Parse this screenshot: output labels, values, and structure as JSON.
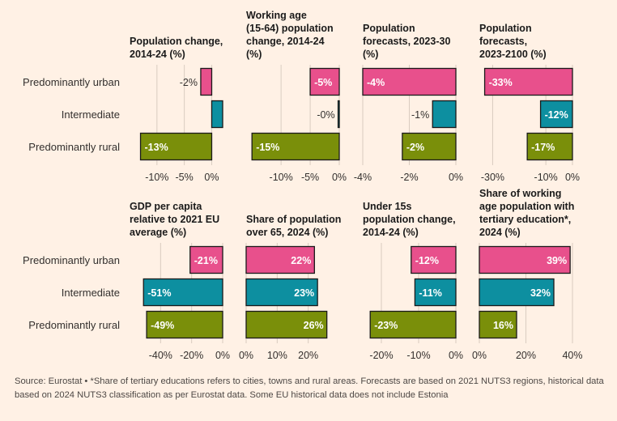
{
  "colors": {
    "urban": "#e8508c",
    "intermediate": "#0d8fa0",
    "rural": "#7a8f0a",
    "background": "#fff1e5",
    "gridline": "#d9ccc0",
    "zeroline": "#33302e"
  },
  "categories": [
    "Predominantly urban",
    "Intermediate",
    "Predominantly rural"
  ],
  "chart_data": [
    {
      "type": "bar",
      "title": "Population change,\n2014-24 (%)",
      "categories": [
        "Predominantly urban",
        "Intermediate",
        "Predominantly rural"
      ],
      "values": [
        -2,
        2,
        -13
      ],
      "labels": [
        "-2%",
        "",
        "-13%"
      ],
      "xlim": [
        -15,
        2
      ],
      "ticks": [
        -10,
        -5,
        0
      ],
      "tick_labels": [
        "-10%",
        "-5%",
        "0%"
      ]
    },
    {
      "type": "bar",
      "title": "Working age\n(15-64) population\nchange, 2014-24\n(%)",
      "categories": [
        "Predominantly urban",
        "Intermediate",
        "Predominantly rural"
      ],
      "values": [
        -5,
        -0.2,
        -15
      ],
      "labels": [
        "-5%",
        "-0%",
        "-15%"
      ],
      "xlim": [
        -16,
        0
      ],
      "ticks": [
        -10,
        -5,
        0
      ],
      "tick_labels": [
        "-10%",
        "-5%",
        "0%"
      ]
    },
    {
      "type": "bar",
      "title": "Population\nforecasts, 2023-30\n(%)",
      "categories": [
        "Predominantly urban",
        "Intermediate",
        "Predominantly rural"
      ],
      "values": [
        -4,
        -1,
        -2.3
      ],
      "labels": [
        "-4%",
        "-1%",
        "-2%"
      ],
      "xlim": [
        -4,
        0
      ],
      "ticks": [
        -4,
        -2,
        0
      ],
      "tick_labels": [
        "-4%",
        "-2%",
        "0%"
      ]
    },
    {
      "type": "bar",
      "title": "Population\nforecasts,\n2023-2100 (%)",
      "categories": [
        "Predominantly urban",
        "Intermediate",
        "Predominantly rural"
      ],
      "values": [
        -33,
        -12,
        -17
      ],
      "labels": [
        "-33%",
        "-12%",
        "-17%"
      ],
      "xlim": [
        -35,
        0
      ],
      "ticks": [
        -30,
        -10,
        0
      ],
      "tick_labels": [
        "-30%",
        "-10%",
        "0%"
      ]
    },
    {
      "type": "bar",
      "title": "GDP per capita\nrelative to 2021 EU\naverage (%)",
      "categories": [
        "Predominantly urban",
        "Intermediate",
        "Predominantly rural"
      ],
      "values": [
        -21,
        -51,
        -49
      ],
      "labels": [
        "-21%",
        "-51%",
        "-49%"
      ],
      "xlim": [
        -60,
        0
      ],
      "ticks": [
        -40,
        -20,
        0
      ],
      "tick_labels": [
        "-40%",
        "-20%",
        "0%"
      ]
    },
    {
      "type": "bar",
      "title": "Share of population\nover 65, 2024 (%)",
      "categories": [
        "Predominantly urban",
        "Intermediate",
        "Predominantly rural"
      ],
      "values": [
        22,
        23,
        26
      ],
      "labels": [
        "22%",
        "23%",
        "26%"
      ],
      "xlim": [
        0,
        30
      ],
      "ticks": [
        0,
        10,
        20
      ],
      "tick_labels": [
        "0%",
        "10%",
        "20%"
      ]
    },
    {
      "type": "bar",
      "title": "Under 15s\npopulation change,\n2014-24 (%)",
      "categories": [
        "Predominantly urban",
        "Intermediate",
        "Predominantly rural"
      ],
      "values": [
        -12,
        -11,
        -23
      ],
      "labels": [
        "-12%",
        "-11%",
        "-23%"
      ],
      "xlim": [
        -25,
        0
      ],
      "ticks": [
        -20,
        -10,
        0
      ],
      "tick_labels": [
        "-20%",
        "-10%",
        "0%"
      ]
    },
    {
      "type": "bar",
      "title": "Share of working\nage population with\ntertiary education*,\n2024 (%)",
      "categories": [
        "Predominantly urban",
        "Intermediate",
        "Predominantly rural"
      ],
      "values": [
        39,
        32,
        16
      ],
      "labels": [
        "39%",
        "32%",
        "16%"
      ],
      "xlim": [
        0,
        40
      ],
      "ticks": [
        0,
        20,
        40
      ],
      "tick_labels": [
        "0%",
        "20%",
        "40%"
      ]
    }
  ],
  "footer": {
    "source": "Source: Eurostat • *Share of tertiary educations refers to cities, towns and rural areas. Forecasts are based on 2021 NUTS3 regions, historical data based on 2024 NUTS3 classification as per Eurostat data. Some EU historical data does not include Estonia"
  }
}
